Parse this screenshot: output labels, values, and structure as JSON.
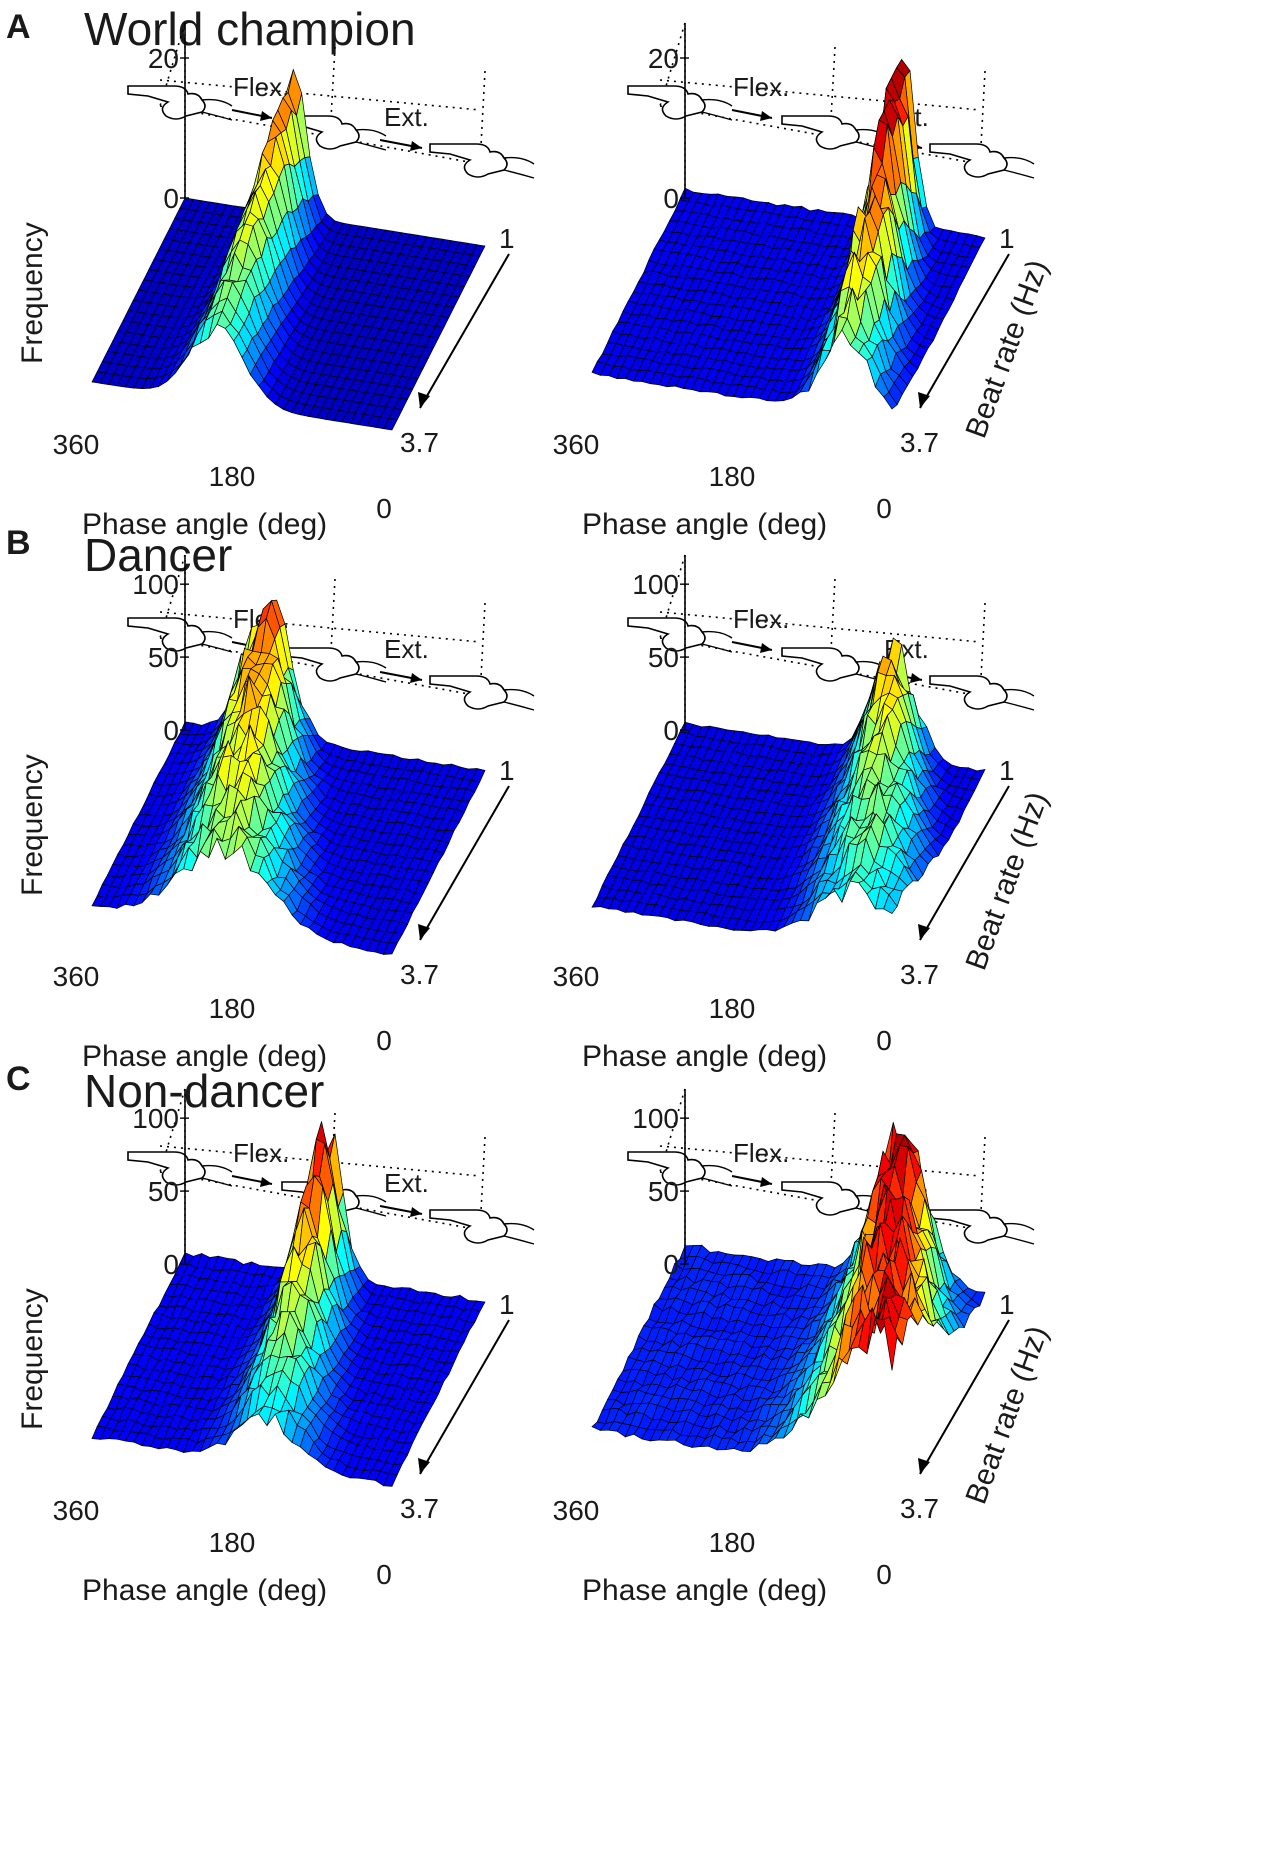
{
  "colors": {
    "colormap": [
      "#00008f",
      "#0000ff",
      "#0080ff",
      "#00ffff",
      "#80ff80",
      "#ffff00",
      "#ff8000",
      "#ff0000",
      "#800000"
    ],
    "grid_line": "#000000",
    "text": "#1a1a1a"
  },
  "icons": [
    "finger-flexion-icon",
    "finger-mid-icon",
    "finger-extension-icon"
  ],
  "panels": [
    {
      "letter": "A",
      "title": "World champion"
    },
    {
      "letter": "B",
      "title": "Dancer"
    },
    {
      "letter": "C",
      "title": "Non-dancer"
    }
  ],
  "annotations": {
    "flex": "Flex.",
    "ext": "Ext."
  },
  "chart_data": [
    {
      "type": "surface",
      "panel": "A",
      "position": "left",
      "xlabel": "Phase angle (deg)",
      "ylabel": "Frequency",
      "zlabel": "",
      "x_ticks": [
        "360",
        "180",
        "0"
      ],
      "x_range": [
        360,
        0
      ],
      "z_ticks": [
        "0",
        "20"
      ],
      "z_range": [
        0,
        25
      ],
      "depth_ticks": [
        "1",
        "3.7"
      ],
      "depth_range": [
        1,
        3.7
      ],
      "peak": {
        "phase": 210,
        "height": 25,
        "width": 16,
        "drift": 20,
        "bias": 0,
        "decay": 0.5,
        "noise": 0.15
      }
    },
    {
      "type": "surface",
      "panel": "A",
      "position": "right",
      "xlabel": "Phase angle (deg)",
      "ylabel": "",
      "zlabel": "Beat rate (Hz)",
      "x_ticks": [
        "360",
        "180",
        "0"
      ],
      "x_range": [
        360,
        0
      ],
      "z_ticks": [
        "0",
        "20"
      ],
      "z_range": [
        0,
        25
      ],
      "depth_ticks": [
        "1",
        "3.7"
      ],
      "depth_range": [
        1,
        3.7
      ],
      "peak": {
        "phase": 55,
        "height": 30,
        "width": 14,
        "drift": 45,
        "bias": 1,
        "decay": 0.6,
        "noise": 0.35
      }
    },
    {
      "type": "surface",
      "panel": "B",
      "position": "left",
      "xlabel": "Phase angle (deg)",
      "ylabel": "Frequency",
      "zlabel": "",
      "x_ticks": [
        "360",
        "180",
        "0"
      ],
      "x_range": [
        360,
        0
      ],
      "z_ticks": [
        "0",
        "50",
        "100"
      ],
      "z_range": [
        0,
        120
      ],
      "depth_ticks": [
        "1",
        "3.7"
      ],
      "depth_range": [
        1,
        3.7
      ],
      "peak": {
        "phase": 200,
        "height": 105,
        "width": 26,
        "drift": 60,
        "bias": 4,
        "decay": 0.4,
        "noise": 0.3
      }
    },
    {
      "type": "surface",
      "panel": "B",
      "position": "right",
      "xlabel": "Phase angle (deg)",
      "ylabel": "",
      "zlabel": "Beat rate (Hz)",
      "x_ticks": [
        "360",
        "180",
        "0"
      ],
      "x_range": [
        360,
        0
      ],
      "z_ticks": [
        "0",
        "50",
        "100"
      ],
      "z_range": [
        0,
        120
      ],
      "depth_ticks": [
        "1",
        "3.7"
      ],
      "depth_range": [
        1,
        3.7
      ],
      "peak": {
        "phase": 40,
        "height": 85,
        "width": 24,
        "drift": 70,
        "bias": 4,
        "decay": 0.5,
        "noise": 0.35
      }
    },
    {
      "type": "surface",
      "panel": "C",
      "position": "left",
      "xlabel": "Phase angle (deg)",
      "ylabel": "Frequency",
      "zlabel": "",
      "x_ticks": [
        "360",
        "180",
        "0"
      ],
      "x_range": [
        360,
        0
      ],
      "z_ticks": [
        "0",
        "50",
        "100"
      ],
      "z_range": [
        0,
        120
      ],
      "depth_ticks": [
        "1",
        "3.7"
      ],
      "depth_range": [
        1,
        3.7
      ],
      "peak": {
        "phase": 150,
        "height": 110,
        "width": 18,
        "drift": 40,
        "bias": 6,
        "decay": 0.7,
        "noise": 0.35
      }
    },
    {
      "type": "surface",
      "panel": "C",
      "position": "right",
      "xlabel": "Phase angle (deg)",
      "ylabel": "",
      "zlabel": "Beat rate (Hz)",
      "x_ticks": [
        "360",
        "180",
        "0"
      ],
      "x_range": [
        360,
        0
      ],
      "z_ticks": [
        "0",
        "50",
        "100"
      ],
      "z_range": [
        0,
        120
      ],
      "depth_ticks": [
        "1",
        "3.7"
      ],
      "depth_range": [
        1,
        3.7
      ],
      "peak": {
        "phase": 20,
        "height": 105,
        "width": 30,
        "drift": 80,
        "bias": 10,
        "decay": 0.1,
        "noise": 0.4
      }
    }
  ]
}
